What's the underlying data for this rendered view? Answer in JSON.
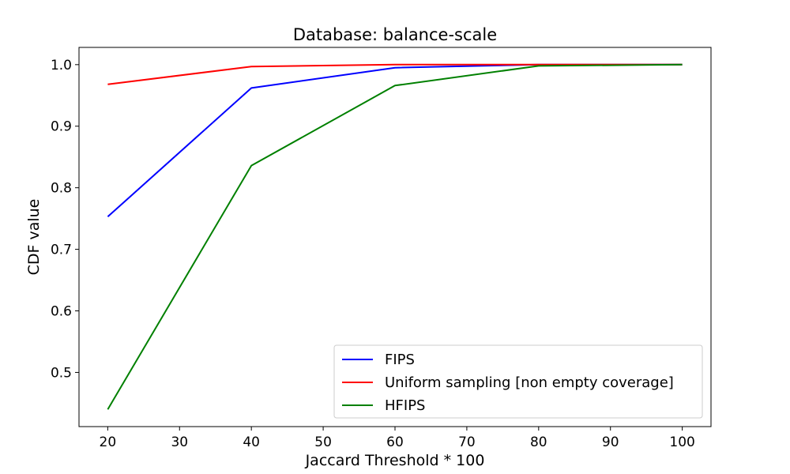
{
  "chart_data": {
    "type": "line",
    "title": "Database: balance-scale",
    "xlabel": "Jaccard Threshold * 100",
    "ylabel": "CDF value",
    "xlim": [
      16,
      104
    ],
    "ylim": [
      0.412,
      1.028
    ],
    "xticks": [
      20,
      30,
      40,
      50,
      60,
      70,
      80,
      90,
      100
    ],
    "yticks": [
      0.5,
      0.6,
      0.7,
      0.8,
      0.9,
      1.0
    ],
    "ytick_labels": [
      "0.5",
      "0.6",
      "0.7",
      "0.8",
      "0.9",
      "1.0"
    ],
    "grid": false,
    "legend_position": "bottom-right",
    "series": [
      {
        "name": "FIPS",
        "color": "#0000ff",
        "x": [
          20,
          40,
          60,
          80,
          100
        ],
        "y": [
          0.753,
          0.962,
          0.995,
          1.0,
          1.0
        ]
      },
      {
        "name": "Uniform sampling [non empty coverage]",
        "color": "#ff0000",
        "x": [
          20,
          40,
          60,
          80,
          100
        ],
        "y": [
          0.968,
          0.997,
          1.0,
          1.0,
          1.0
        ]
      },
      {
        "name": "HFIPS",
        "color": "#008000",
        "x": [
          20,
          40,
          60,
          80,
          100
        ],
        "y": [
          0.44,
          0.836,
          0.966,
          0.998,
          1.0
        ]
      }
    ]
  }
}
